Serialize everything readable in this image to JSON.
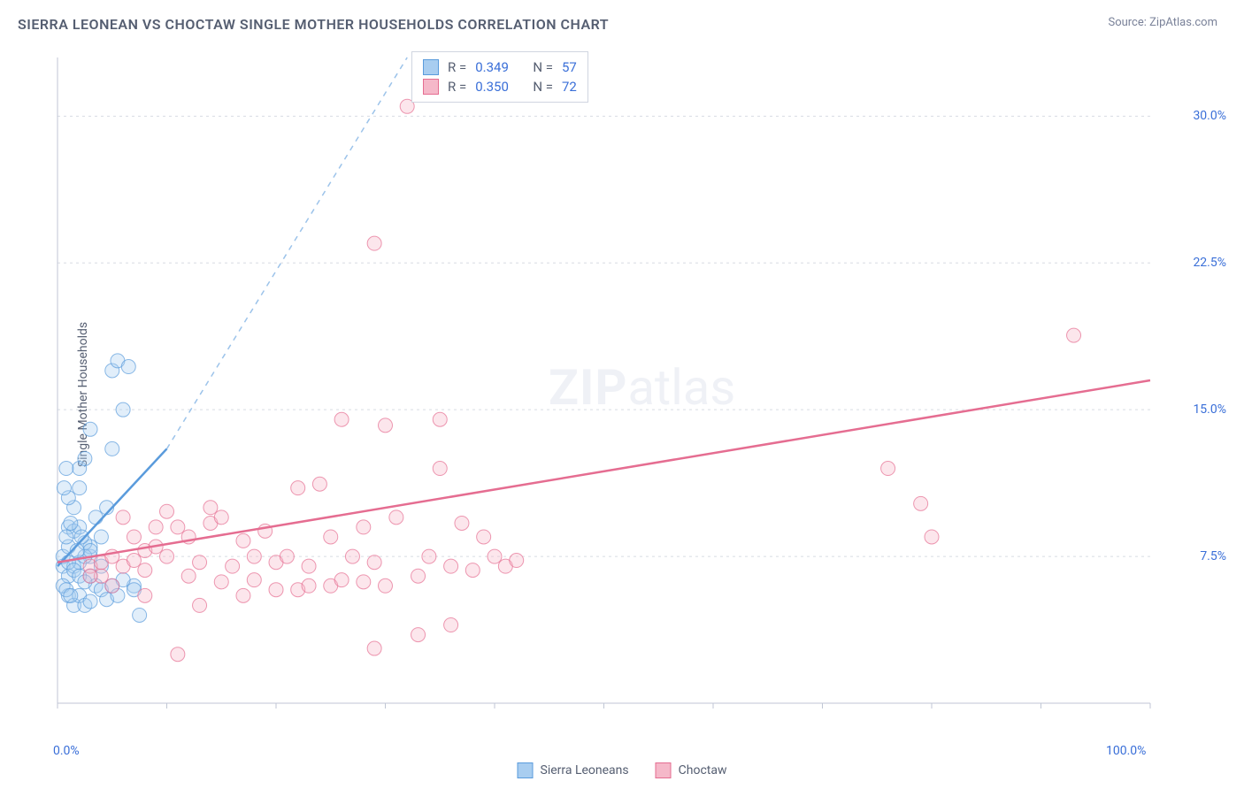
{
  "title": "SIERRA LEONEAN VS CHOCTAW SINGLE MOTHER HOUSEHOLDS CORRELATION CHART",
  "source": "Source: ZipAtlas.com",
  "watermark": {
    "zip": "ZIP",
    "rest": "atlas"
  },
  "y_axis_label": "Single Mother Households",
  "chart": {
    "type": "scatter",
    "xlim": [
      0,
      100
    ],
    "ylim": [
      0,
      33
    ],
    "x_ticks": [
      0,
      10,
      20,
      30,
      40,
      50,
      60,
      70,
      80,
      90,
      100
    ],
    "x_tick_labels_shown": {
      "0": "0.0%",
      "100": "100.0%"
    },
    "y_ticks": [
      7.5,
      15.0,
      22.5,
      30.0
    ],
    "y_tick_labels": [
      "7.5%",
      "15.0%",
      "22.5%",
      "30.0%"
    ],
    "background_color": "#ffffff",
    "grid_color": "#d8dce4",
    "axis_color": "#c0c6d4",
    "marker_radius": 8,
    "marker_opacity": 0.35,
    "series": [
      {
        "name": "Sierra Leoneans",
        "legend_label": "Sierra Leoneans",
        "color_fill": "#a8cdf0",
        "color_stroke": "#5a9bdc",
        "r_value": "0.349",
        "n_value": "57",
        "trend_solid": {
          "x1": 0,
          "y1": 7.0,
          "x2": 10,
          "y2": 13.0
        },
        "trend_dashed": {
          "x1": 10,
          "y1": 13.0,
          "x2": 32,
          "y2": 33.0
        },
        "points": [
          [
            0.5,
            7
          ],
          [
            0.5,
            7.5
          ],
          [
            1,
            8
          ],
          [
            1,
            9
          ],
          [
            1.5,
            10
          ],
          [
            2,
            11
          ],
          [
            2,
            12
          ],
          [
            2.5,
            12.5
          ],
          [
            3,
            7.5
          ],
          [
            3,
            8
          ],
          [
            3.5,
            9.5
          ],
          [
            4,
            7
          ],
          [
            4,
            8.5
          ],
          [
            4.5,
            10
          ],
          [
            5,
            13
          ],
          [
            5,
            17
          ],
          [
            5.5,
            17.5
          ],
          [
            6,
            15
          ],
          [
            6.5,
            17.2
          ],
          [
            7,
            6
          ],
          [
            1,
            5.5
          ],
          [
            1.5,
            5
          ],
          [
            2,
            5.5
          ],
          [
            2.5,
            5
          ],
          [
            3,
            5.2
          ],
          [
            3,
            6.5
          ],
          [
            3.5,
            6
          ],
          [
            4,
            5.8
          ],
          [
            4.5,
            5.3
          ],
          [
            5,
            6
          ],
          [
            5.5,
            5.5
          ],
          [
            6,
            6.3
          ],
          [
            7,
            5.8
          ],
          [
            7.5,
            4.5
          ],
          [
            3,
            14
          ],
          [
            1,
            10.5
          ],
          [
            1.5,
            8.8
          ],
          [
            2,
            9
          ],
          [
            2.5,
            8.2
          ],
          [
            1,
            6.5
          ],
          [
            1.5,
            7
          ],
          [
            2,
            7.2
          ],
          [
            2.5,
            7.5
          ],
          [
            3,
            7.8
          ],
          [
            0.8,
            8.5
          ],
          [
            1.2,
            9.2
          ],
          [
            1.8,
            7.8
          ],
          [
            2.2,
            8.5
          ],
          [
            0.6,
            11
          ],
          [
            0.8,
            12
          ],
          [
            1,
            7.2
          ],
          [
            1.5,
            6.8
          ],
          [
            2,
            6.5
          ],
          [
            2.5,
            6.2
          ],
          [
            0.5,
            6
          ],
          [
            0.8,
            5.8
          ],
          [
            1.2,
            5.5
          ]
        ]
      },
      {
        "name": "Choctaw",
        "legend_label": "Choctaw",
        "color_fill": "#f5b8c9",
        "color_stroke": "#e56d91",
        "r_value": "0.350",
        "n_value": "72",
        "trend_solid": {
          "x1": 0,
          "y1": 7.2,
          "x2": 100,
          "y2": 16.5
        },
        "trend_dashed": null,
        "points": [
          [
            3,
            7
          ],
          [
            4,
            7.2
          ],
          [
            5,
            7.5
          ],
          [
            6,
            7
          ],
          [
            7,
            7.3
          ],
          [
            8,
            7.8
          ],
          [
            9,
            8
          ],
          [
            10,
            7.5
          ],
          [
            11,
            9
          ],
          [
            12,
            8.5
          ],
          [
            13,
            7.2
          ],
          [
            14,
            9.2
          ],
          [
            15,
            9.5
          ],
          [
            16,
            7
          ],
          [
            17,
            8.3
          ],
          [
            18,
            7.5
          ],
          [
            19,
            8.8
          ],
          [
            20,
            7.2
          ],
          [
            21,
            7.5
          ],
          [
            22,
            11
          ],
          [
            23,
            7
          ],
          [
            24,
            11.2
          ],
          [
            25,
            8.5
          ],
          [
            26,
            14.5
          ],
          [
            27,
            7.5
          ],
          [
            28,
            9
          ],
          [
            29,
            7.2
          ],
          [
            30,
            6
          ],
          [
            31,
            9.5
          ],
          [
            32,
            30.5
          ],
          [
            33,
            6.5
          ],
          [
            34,
            7.5
          ],
          [
            35,
            12
          ],
          [
            36,
            7
          ],
          [
            37,
            9.2
          ],
          [
            38,
            6.8
          ],
          [
            39,
            8.5
          ],
          [
            40,
            7.5
          ],
          [
            41,
            7
          ],
          [
            42,
            7.3
          ],
          [
            29,
            23.5
          ],
          [
            30,
            14.2
          ],
          [
            33,
            3.5
          ],
          [
            29,
            2.8
          ],
          [
            36,
            4
          ],
          [
            35,
            14.5
          ],
          [
            13,
            5
          ],
          [
            8,
            5.5
          ],
          [
            22,
            5.8
          ],
          [
            28,
            6.2
          ],
          [
            25,
            6
          ],
          [
            18,
            6.3
          ],
          [
            76,
            12
          ],
          [
            79,
            10.2
          ],
          [
            80,
            8.5
          ],
          [
            93,
            18.8
          ],
          [
            6,
            9.5
          ],
          [
            10,
            9.8
          ],
          [
            14,
            10
          ],
          [
            11,
            2.5
          ],
          [
            4,
            6.5
          ],
          [
            5,
            6
          ],
          [
            8,
            6.8
          ],
          [
            12,
            6.5
          ],
          [
            15,
            6.2
          ],
          [
            17,
            5.5
          ],
          [
            20,
            5.8
          ],
          [
            23,
            6
          ],
          [
            26,
            6.3
          ],
          [
            7,
            8.5
          ],
          [
            9,
            9
          ],
          [
            3,
            6.5
          ]
        ]
      }
    ]
  },
  "stats_legend_labels": {
    "r_prefix": "R =",
    "n_prefix": "N ="
  },
  "colors": {
    "title_color": "#555e71",
    "tick_label_color": "#3a6fd8"
  }
}
